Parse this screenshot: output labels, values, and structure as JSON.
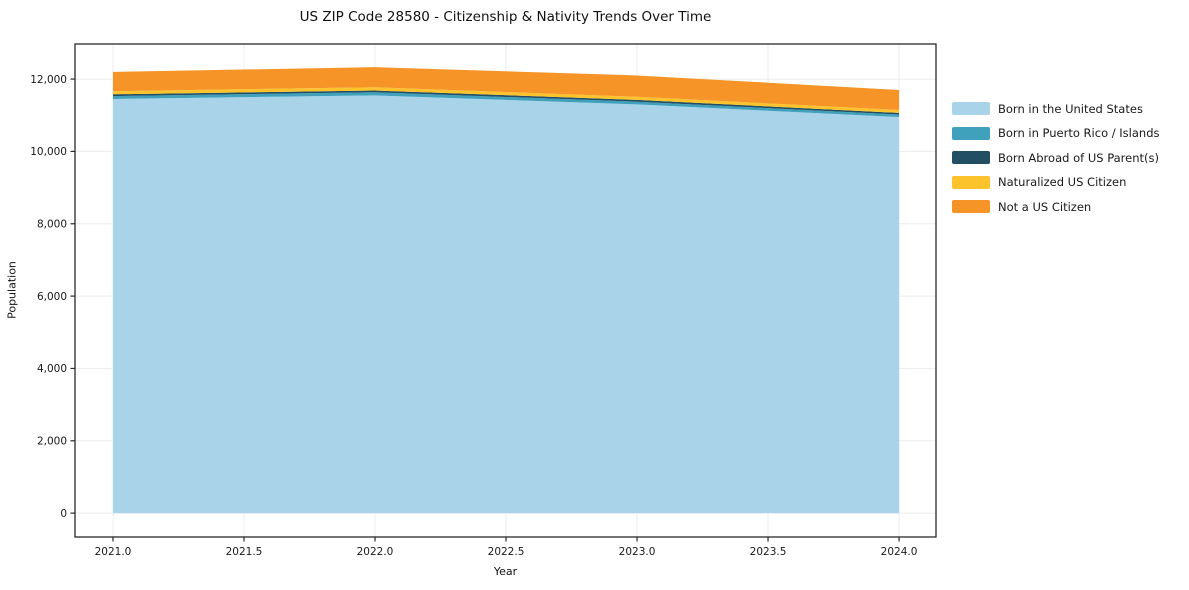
{
  "chart_data": {
    "type": "area",
    "stacked": true,
    "title": "US ZIP Code 28580 - Citizenship & Nativity Trends Over Time",
    "xlabel": "Year",
    "ylabel": "Population",
    "x": [
      2021,
      2022,
      2023,
      2024
    ],
    "series": [
      {
        "name": "Born in the United States",
        "color": "#a9d3e9",
        "values": [
          11450,
          11550,
          11300,
          10950
        ]
      },
      {
        "name": "Born in Puerto Rico / Islands",
        "color": "#40a1bd",
        "values": [
          80,
          85,
          75,
          70
        ]
      },
      {
        "name": "Born Abroad of US Parent(s)",
        "color": "#224f63",
        "values": [
          50,
          50,
          50,
          45
        ]
      },
      {
        "name": "Naturalized US Citizen",
        "color": "#fcc32d",
        "values": [
          85,
          90,
          85,
          80
        ]
      },
      {
        "name": "Not a US Citizen",
        "color": "#f79428",
        "values": [
          535,
          555,
          590,
          555
        ]
      }
    ],
    "x_ticks": {
      "values": [
        2021.0,
        2021.5,
        2022.0,
        2022.5,
        2023.0,
        2023.5,
        2024.0
      ],
      "labels": [
        "2021.0",
        "2021.5",
        "2022.0",
        "2022.5",
        "2023.0",
        "2023.5",
        "2024.0"
      ]
    },
    "y_ticks": {
      "values": [
        0,
        2000,
        4000,
        6000,
        8000,
        10000,
        12000
      ],
      "labels": [
        "0",
        "2,000",
        "4,000",
        "6,000",
        "8,000",
        "10,000",
        "12,000"
      ]
    },
    "xlim": [
      2020.855,
      2024.141
    ],
    "ylim": [
      -660,
      12970
    ],
    "grid": true,
    "legend_position": "right",
    "colors": {
      "grid": "#ececec",
      "spine": "#2a2a2a",
      "tick_text": "#1a1a1a",
      "background": "#ffffff"
    }
  }
}
